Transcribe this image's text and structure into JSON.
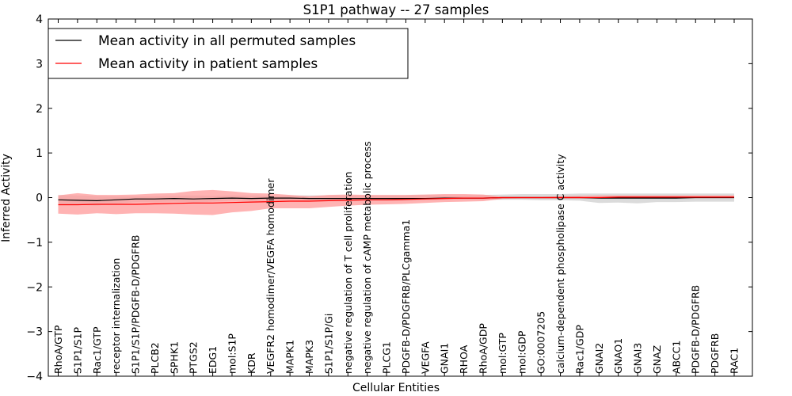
{
  "chart_data": {
    "type": "line",
    "title": "S1P1 pathway -- 27 samples",
    "xlabel": "Cellular Entities",
    "ylabel": "Inferred Activity",
    "ylim": [
      -4,
      4
    ],
    "yticks": [
      "−4",
      "−3",
      "−2",
      "−1",
      "0",
      "1",
      "2",
      "3",
      "4"
    ],
    "grid": false,
    "legend_position": "top-left",
    "categories": [
      "RhoA/GTP",
      "S1P1/S1P",
      "Rac1/GTP",
      "receptor internalization",
      "S1P1/S1P/PDGFB-D/PDGFRB",
      "PLCB2",
      "SPHK1",
      "PTGS2",
      "EDG1",
      "mol:S1P",
      "KDR",
      "VEGFR2 homodimer/VEGFA homodimer",
      "MAPK1",
      "MAPK3",
      "S1P1/S1P/Gi",
      "negative regulation of T cell proliferation",
      "negative regulation of cAMP metabolic process",
      "PLCG1",
      "PDGFB-D/PDGFRB/PLCgamma1",
      "VEGFA",
      "GNAI1",
      "RHOA",
      "RhoA/GDP",
      "mol:GTP",
      "mol:GDP",
      "GO:0007205",
      "calcium-dependent phospholipase C activity",
      "Rac1/GDP",
      "GNAI2",
      "GNAO1",
      "GNAI3",
      "GNAZ",
      "ABCC1",
      "PDGFB-D/PDGFRB",
      "PDGFRB",
      "RAC1"
    ],
    "series": [
      {
        "name": "Mean activity in all permuted samples",
        "color": "#000000",
        "band_color": "#b0b0b0",
        "values": [
          -0.05,
          -0.06,
          -0.07,
          -0.05,
          -0.03,
          -0.03,
          -0.02,
          -0.03,
          -0.02,
          -0.01,
          -0.02,
          -0.01,
          -0.01,
          -0.02,
          -0.02,
          -0.02,
          -0.02,
          -0.02,
          -0.02,
          -0.02,
          -0.01,
          -0.01,
          -0.01,
          0.0,
          0.0,
          0.0,
          0.0,
          0.0,
          -0.01,
          -0.01,
          -0.01,
          -0.01,
          -0.01,
          0.0,
          0.0,
          0.0
        ],
        "upper": [
          0.06,
          0.05,
          0.04,
          0.03,
          0.03,
          0.03,
          0.04,
          0.05,
          0.04,
          0.05,
          0.05,
          0.04,
          0.05,
          0.05,
          0.05,
          0.05,
          0.05,
          0.05,
          0.05,
          0.06,
          0.05,
          0.05,
          0.06,
          0.07,
          0.08,
          0.08,
          0.08,
          0.09,
          0.09,
          0.09,
          0.09,
          0.09,
          0.09,
          0.09,
          0.09,
          0.09
        ],
        "lower": [
          -0.17,
          -0.16,
          -0.18,
          -0.14,
          -0.1,
          -0.1,
          -0.09,
          -0.11,
          -0.09,
          -0.07,
          -0.08,
          -0.06,
          -0.06,
          -0.08,
          -0.08,
          -0.08,
          -0.07,
          -0.07,
          -0.07,
          -0.06,
          -0.05,
          -0.05,
          -0.05,
          -0.05,
          -0.05,
          -0.06,
          -0.06,
          -0.07,
          -0.12,
          -0.11,
          -0.13,
          -0.1,
          -0.1,
          -0.09,
          -0.09,
          -0.09
        ]
      },
      {
        "name": "Mean activity in patient samples",
        "color": "#ff0000",
        "band_color": "#ff9a9a",
        "values": [
          -0.16,
          -0.16,
          -0.15,
          -0.15,
          -0.15,
          -0.14,
          -0.13,
          -0.12,
          -0.12,
          -0.11,
          -0.1,
          -0.09,
          -0.08,
          -0.08,
          -0.07,
          -0.06,
          -0.05,
          -0.05,
          -0.04,
          -0.03,
          -0.02,
          -0.01,
          -0.01,
          0.0,
          0.0,
          0.0,
          0.0,
          0.0,
          0.0,
          0.01,
          0.01,
          0.01,
          0.01,
          0.01,
          0.01,
          0.01
        ],
        "upper": [
          0.05,
          0.1,
          0.06,
          0.06,
          0.07,
          0.09,
          0.1,
          0.15,
          0.17,
          0.14,
          0.1,
          0.09,
          0.06,
          0.03,
          0.06,
          0.07,
          0.06,
          0.06,
          0.06,
          0.07,
          0.08,
          0.08,
          0.07,
          0.02,
          0.02,
          0.02,
          0.03,
          0.04,
          0.05,
          0.05,
          0.05,
          0.05,
          0.05,
          0.05,
          0.05,
          0.05
        ],
        "lower": [
          -0.36,
          -0.38,
          -0.35,
          -0.37,
          -0.35,
          -0.35,
          -0.36,
          -0.38,
          -0.39,
          -0.33,
          -0.3,
          -0.24,
          -0.24,
          -0.24,
          -0.21,
          -0.18,
          -0.16,
          -0.15,
          -0.14,
          -0.12,
          -0.1,
          -0.09,
          -0.08,
          -0.03,
          -0.02,
          -0.02,
          -0.02,
          -0.02,
          -0.01,
          -0.01,
          -0.01,
          -0.01,
          -0.01,
          -0.01,
          -0.01,
          -0.01
        ]
      }
    ]
  }
}
